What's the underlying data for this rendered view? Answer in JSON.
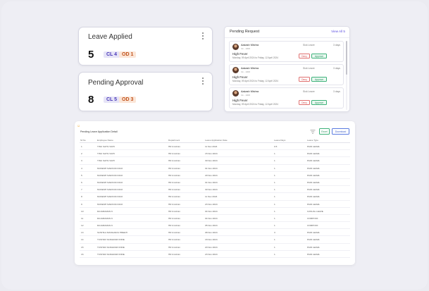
{
  "stats": {
    "leave_applied": {
      "title": "Leave Applied",
      "count": "5",
      "badges": [
        "CL 4",
        "OD 1"
      ]
    },
    "pending_approval": {
      "title": "Pending Approval",
      "count": "8",
      "badges": [
        "CL 5",
        "OD 3"
      ]
    }
  },
  "pending_requests": {
    "title": "Pending Request",
    "view_all": "View All 5",
    "items": [
      {
        "name": "Aakash Mishra",
        "sub": "Ck - 1006",
        "type": "Sick Leave",
        "days": "3 days",
        "reason": "High Fever",
        "dates": "Monday, 09 April 2024 to Friday, 12 April 2024",
        "deny": "Deny",
        "approve": "Approve"
      },
      {
        "name": "Aakash Mishra",
        "sub": "Ck - 1006",
        "type": "Sick Leave",
        "days": "3 days",
        "reason": "High Fever",
        "dates": "Monday, 09 April 2024 to Friday, 12 April 2024",
        "deny": "Deny",
        "approve": "Approve"
      },
      {
        "name": "Aakash Mishra",
        "sub": "Ck - 1006",
        "type": "Sick Leave",
        "days": "3 days",
        "reason": "High Fever",
        "dates": "Monday, 09 April 2024 to Friday, 12 April 2024",
        "deny": "Deny",
        "approve": "Approve"
      }
    ]
  },
  "table": {
    "title": "Pending Leave Application Detail",
    "excel": "Excel",
    "download": "Download",
    "columns": [
      "Sl No",
      "Employee Name",
      "Department",
      "Leave Application Date",
      "Leave Days",
      "Leave Type"
    ],
    "rows": [
      [
        "1",
        "TINU SAHU SAHI",
        "HR & Admin",
        "11 Nov 2024",
        "0.5",
        "PAID LEAVE"
      ],
      [
        "2",
        "TINU SAHU SAHI",
        "HR & Admin",
        "15 Nov 2024",
        "1",
        "PAID LEAVE"
      ],
      [
        "3",
        "TINU SAHU SAHI",
        "HR & Admin",
        "30 Nov 2024",
        "1",
        "PAID LEAVE"
      ],
      [
        "4",
        "MUKESH NARAYAN RAO",
        "HR & Admin",
        "01 Nov 2024",
        "1",
        "PAID LEAVE"
      ],
      [
        "5",
        "MUKESH NARAYAN RAO",
        "HR & Admin",
        "29 Nov 2024",
        "1",
        "PAID LEAVE"
      ],
      [
        "6",
        "MUKESH NARAYAN RAO",
        "HR & Admin",
        "01 Nov 2024",
        "1",
        "PAID LEAVE"
      ],
      [
        "7",
        "MUKESH NARAYAN RAO",
        "HR & Admin",
        "30 Nov 2024",
        "1",
        "PAID LEAVE"
      ],
      [
        "8",
        "MUKESH NARAYAN RAO",
        "HR & Admin",
        "11 Nov 2024",
        "1",
        "PAID LEAVE"
      ],
      [
        "9",
        "MUKESH NARAYAN RAO",
        "HR & Admin",
        "23 Nov 2024",
        "1",
        "PAID LEAVE"
      ],
      [
        "10",
        "RAJARAMAN K",
        "HR & Admin",
        "04 Nov 2024",
        "1",
        "CASUAL LEAVE"
      ],
      [
        "11",
        "RAJARAMAN K",
        "HR & Admin",
        "04 Nov 2024",
        "1",
        "COMPOFF"
      ],
      [
        "12",
        "RAJARAMAN K",
        "HR & Admin",
        "05 Nov 2024",
        "1",
        "COMPOFF"
      ],
      [
        "13",
        "SUSHILA MANGARAJ PREETI",
        "HR & Admin",
        "08 Nov 2024",
        "3",
        "PAID LEAVE"
      ],
      [
        "14",
        "TUSHAR SANGRAM KORE",
        "HR & Admin",
        "18 Nov 2024",
        "1",
        "PAID LEAVE"
      ],
      [
        "15",
        "TUSHAR SANGRAM KORE",
        "HR & Admin",
        "20 Nov 2024",
        "1",
        "PAID LEAVE"
      ],
      [
        "16",
        "TUSHAR SANGRAM KORE",
        "HR & Admin",
        "23 Nov 2024",
        "1",
        "PAID LEAVE"
      ]
    ]
  }
}
